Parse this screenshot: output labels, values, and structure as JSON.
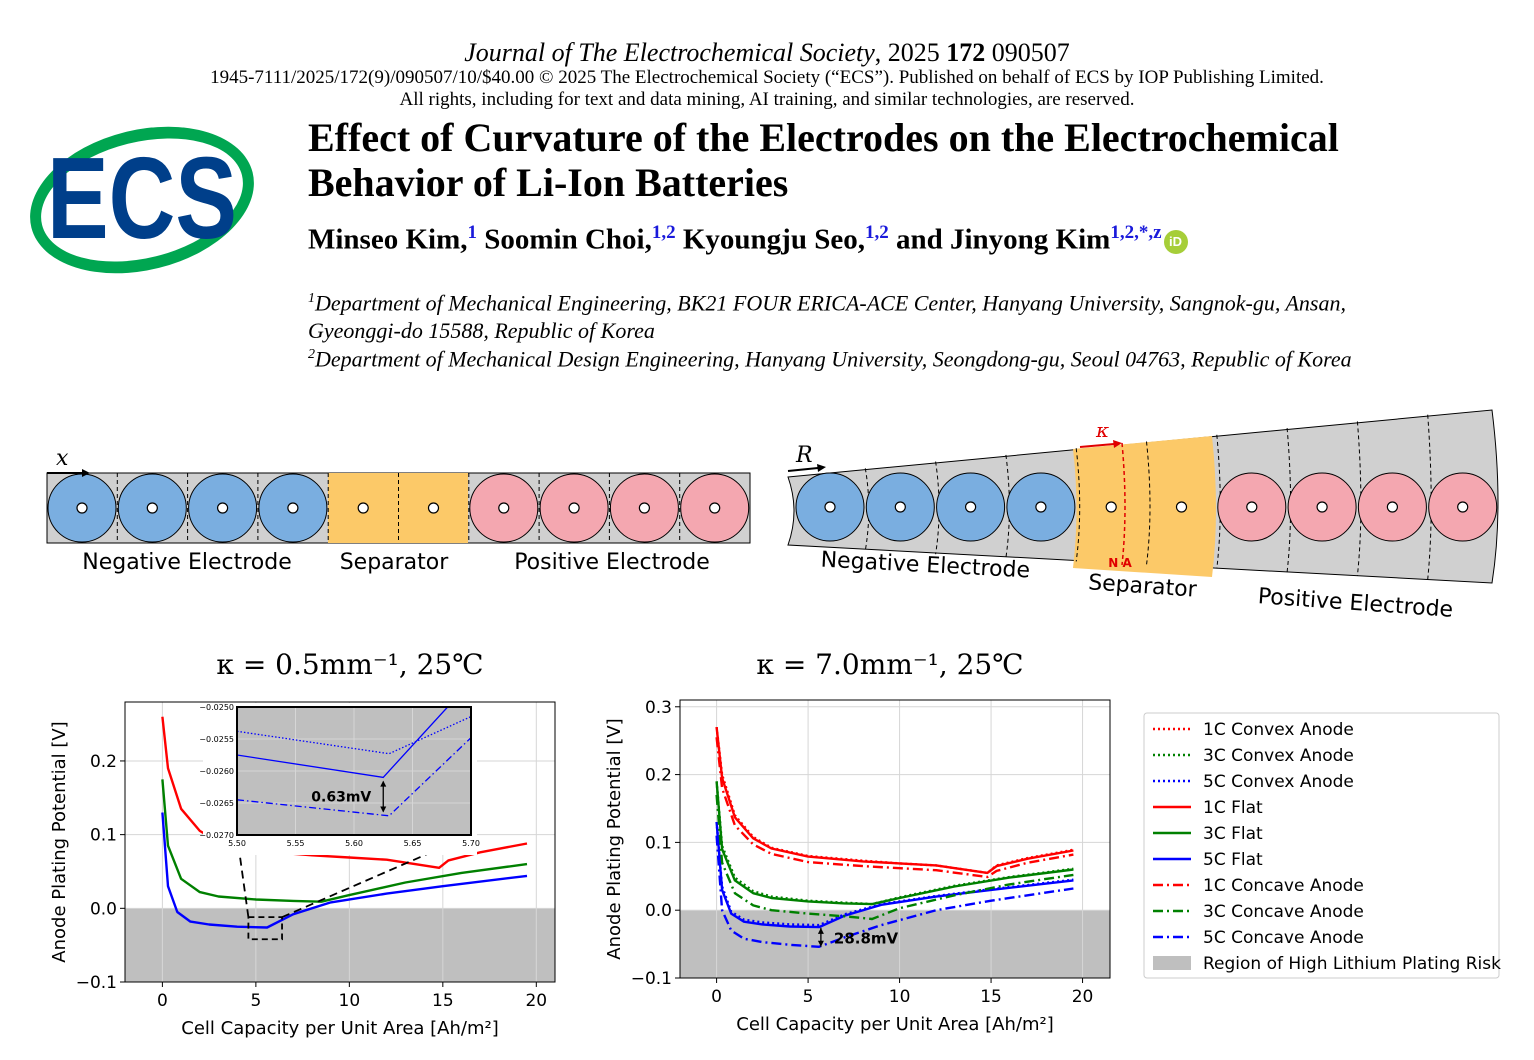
{
  "header": {
    "journal_name": "Journal of The Electrochemical Society",
    "year": "2025",
    "volume": "172",
    "article_number": "090507",
    "copyright_line": "1945-7111/2025/172(9)/090507/10/$40.00 © 2025 The Electrochemical Society (“ECS”). Published on behalf of ECS by IOP Publishing Limited.",
    "rights_line": "All rights, including for text and data mining, AI training, and similar technologies, are reserved."
  },
  "logo": {
    "text": "ECS"
  },
  "paper": {
    "title_line1": "Effect of Curvature of the Electrodes on the Electrochemical",
    "title_line2": "Behavior of Li-Ion Batteries",
    "authors": [
      {
        "name": "Minseo Kim,",
        "sup": "1"
      },
      {
        "name": "Soomin Choi,",
        "sup": "1,2"
      },
      {
        "name": "Kyoungju Seo,",
        "sup": "1,2"
      },
      {
        "name": "and Jinyong Kim",
        "sup": "1,2,*,z"
      }
    ],
    "orcid_label": "iD",
    "affiliations": [
      {
        "sup": "1",
        "line1": "Department of Mechanical Engineering, BK21 FOUR ERICA-ACE Center, Hanyang University, Sangnok-gu, Ansan,",
        "line2": "Gyeonggi-do 15588, Republic of Korea"
      },
      {
        "sup": "2",
        "line1": "Department of Mechanical Design Engineering, Hanyang University, Seongdong-gu, Seoul 04763, Republic of Korea",
        "line2": ""
      }
    ]
  },
  "schematic_flat": {
    "axis_label": "x",
    "negative_label": "Negative Electrode",
    "separator_label": "Separator",
    "positive_label": "Positive Electrode",
    "colors": {
      "negative": "#7aaee0",
      "separator": "#fcc968",
      "positive": "#f4a7b0",
      "background": "#d0d0d0"
    }
  },
  "schematic_curved": {
    "axis_label": "R",
    "kappa_label": "κ",
    "na_label": "N A",
    "negative_label": "Negative Electrode",
    "separator_label": "Separator",
    "positive_label": "Positive Electrode"
  },
  "plot_titles": {
    "left": "κ = 0.5mm⁻¹, 25℃",
    "right": "κ = 7.0mm⁻¹, 25℃"
  },
  "chart_data": [
    {
      "type": "line",
      "title": "κ = 0.5mm⁻¹, 25℃",
      "xlabel": "Cell Capacity per Unit Area [Ah/m²]",
      "ylabel": "Anode Plating Potential [V]",
      "xlim": [
        -2,
        21
      ],
      "ylim": [
        -0.1,
        0.28
      ],
      "xticks": [
        "0",
        "5",
        "10",
        "15",
        "20"
      ],
      "yticks": [
        "−0.1",
        "0.0",
        "0.1",
        "0.2"
      ],
      "grid": true,
      "risk_region": [
        -0.1,
        0.0
      ],
      "series": [
        {
          "name": "1C Flat",
          "color": "#ff0000",
          "style": "solid",
          "x": [
            0,
            0.3,
            1,
            2,
            3,
            5,
            8,
            10,
            12,
            14.8,
            15.3,
            17,
            19.5
          ],
          "y": [
            0.26,
            0.19,
            0.135,
            0.105,
            0.09,
            0.078,
            0.072,
            0.069,
            0.066,
            0.055,
            0.065,
            0.076,
            0.088
          ]
        },
        {
          "name": "3C Flat",
          "color": "#008000",
          "style": "solid",
          "x": [
            0,
            0.3,
            1,
            2,
            3,
            5,
            7,
            8.5,
            10,
            13,
            16,
            19.5
          ],
          "y": [
            0.175,
            0.085,
            0.04,
            0.022,
            0.016,
            0.012,
            0.01,
            0.009,
            0.018,
            0.035,
            0.048,
            0.06
          ]
        },
        {
          "name": "5C Flat",
          "color": "#0000ff",
          "style": "solid",
          "x": [
            0,
            0.3,
            0.8,
            1.5,
            2.5,
            4,
            5.6,
            7,
            9,
            12,
            15,
            19.5
          ],
          "y": [
            0.13,
            0.03,
            -0.005,
            -0.018,
            -0.022,
            -0.025,
            -0.026,
            -0.008,
            0.008,
            0.02,
            0.03,
            0.044
          ]
        }
      ],
      "inset": {
        "xlim": [
          5.5,
          5.7
        ],
        "ylim": [
          -0.027,
          -0.025
        ],
        "xticks": [
          "5.50",
          "5.55",
          "5.60",
          "5.65",
          "5.70"
        ],
        "yticks": [
          "−0.0250",
          "−0.0255",
          "−0.0260",
          "−0.0265",
          "−0.0270"
        ],
        "annotation": "0.63mV",
        "series": [
          {
            "name": "5C Convex Anode",
            "style": "dotted",
            "x": [
              5.5,
              5.63,
              5.7
            ],
            "y": [
              -0.02538,
              -0.02573,
              -0.02515
            ]
          },
          {
            "name": "5C Flat",
            "style": "solid",
            "x": [
              5.5,
              5.625,
              5.68
            ],
            "y": [
              -0.02575,
              -0.0261,
              -0.025
            ]
          },
          {
            "name": "5C Concave Anode",
            "style": "dashdot",
            "x": [
              5.5,
              5.63,
              5.7
            ],
            "y": [
              -0.02645,
              -0.0267,
              -0.02548
            ]
          }
        ]
      }
    },
    {
      "type": "line",
      "title": "κ = 7.0mm⁻¹, 25℃",
      "xlabel": "Cell Capacity per Unit Area [Ah/m²]",
      "ylabel": "Anode Plating Potential [V]",
      "xlim": [
        -2,
        21.5
      ],
      "ylim": [
        -0.1,
        0.31
      ],
      "xticks": [
        "0",
        "5",
        "10",
        "15",
        "20"
      ],
      "yticks": [
        "−0.1",
        "0.0",
        "0.1",
        "0.2",
        "0.3"
      ],
      "grid": true,
      "risk_region": [
        -0.1,
        0.0
      ],
      "annotation": "28.8mV",
      "series": [
        {
          "name": "1C Convex Anode",
          "color": "#ff0000",
          "style": "dotted",
          "x": [
            0,
            0.3,
            1,
            2,
            3,
            5,
            8,
            10,
            12,
            14.8,
            15.3,
            17,
            19.5
          ],
          "y": [
            0.27,
            0.2,
            0.14,
            0.108,
            0.092,
            0.08,
            0.073,
            0.069,
            0.066,
            0.055,
            0.066,
            0.077,
            0.089
          ]
        },
        {
          "name": "3C Convex Anode",
          "color": "#008000",
          "style": "dotted",
          "x": [
            0,
            0.3,
            1,
            2,
            3,
            5,
            7,
            8.5,
            10,
            13,
            16,
            19.5
          ],
          "y": [
            0.19,
            0.095,
            0.048,
            0.028,
            0.02,
            0.014,
            0.011,
            0.009,
            0.019,
            0.036,
            0.049,
            0.061
          ]
        },
        {
          "name": "5C Convex Anode",
          "color": "#0000ff",
          "style": "dotted",
          "x": [
            0,
            0.3,
            0.8,
            1.5,
            2.5,
            4,
            5.6,
            7,
            9,
            12,
            15,
            19.5
          ],
          "y": [
            0.13,
            0.035,
            -0.002,
            -0.014,
            -0.018,
            -0.021,
            -0.022,
            -0.006,
            0.009,
            0.021,
            0.031,
            0.045
          ]
        },
        {
          "name": "1C Flat",
          "color": "#ff0000",
          "style": "solid",
          "x": [
            0,
            0.3,
            1,
            2,
            3,
            5,
            8,
            10,
            12,
            14.8,
            15.3,
            17,
            19.5
          ],
          "y": [
            0.27,
            0.195,
            0.137,
            0.106,
            0.091,
            0.079,
            0.072,
            0.069,
            0.066,
            0.055,
            0.065,
            0.076,
            0.088
          ]
        },
        {
          "name": "3C Flat",
          "color": "#008000",
          "style": "solid",
          "x": [
            0,
            0.3,
            1,
            2,
            3,
            5,
            7,
            8.5,
            10,
            13,
            16,
            19.5
          ],
          "y": [
            0.19,
            0.09,
            0.044,
            0.025,
            0.018,
            0.013,
            0.01,
            0.009,
            0.018,
            0.035,
            0.048,
            0.06
          ]
        },
        {
          "name": "5C Flat",
          "color": "#0000ff",
          "style": "solid",
          "x": [
            0,
            0.3,
            0.8,
            1.5,
            2.5,
            4,
            5.6,
            7,
            9,
            12,
            15,
            19.5
          ],
          "y": [
            0.13,
            0.03,
            -0.005,
            -0.017,
            -0.021,
            -0.024,
            -0.025,
            -0.008,
            0.008,
            0.02,
            0.03,
            0.044
          ]
        },
        {
          "name": "1C Concave Anode",
          "color": "#ff0000",
          "style": "dashdot",
          "x": [
            0,
            0.3,
            1,
            2,
            3,
            5,
            8,
            10,
            12,
            14.8,
            15.3,
            17,
            19.5
          ],
          "y": [
            0.255,
            0.18,
            0.125,
            0.097,
            0.083,
            0.071,
            0.065,
            0.062,
            0.059,
            0.049,
            0.058,
            0.07,
            0.082
          ]
        },
        {
          "name": "3C Concave Anode",
          "color": "#008000",
          "style": "dashdot",
          "x": [
            0,
            0.3,
            1,
            2,
            3,
            5,
            7,
            8.5,
            10,
            13,
            16,
            19.5
          ],
          "y": [
            0.17,
            0.07,
            0.025,
            0.007,
            0.0,
            -0.005,
            -0.009,
            -0.013,
            0.003,
            0.022,
            0.038,
            0.052
          ]
        },
        {
          "name": "5C Concave Anode",
          "color": "#0000ff",
          "style": "dashdot",
          "x": [
            0,
            0.3,
            0.8,
            1.5,
            2.5,
            4,
            5.6,
            7,
            9,
            12,
            15,
            19.5
          ],
          "y": [
            0.11,
            0.0,
            -0.03,
            -0.042,
            -0.047,
            -0.051,
            -0.054,
            -0.04,
            -0.022,
            0.0,
            0.014,
            0.032
          ]
        }
      ]
    }
  ],
  "legend": {
    "items": [
      {
        "label": "1C Convex Anode",
        "color": "#ff0000",
        "style": "dotted"
      },
      {
        "label": "3C Convex Anode",
        "color": "#008000",
        "style": "dotted"
      },
      {
        "label": "5C Convex Anode",
        "color": "#0000ff",
        "style": "dotted"
      },
      {
        "label": "1C Flat",
        "color": "#ff0000",
        "style": "solid"
      },
      {
        "label": "3C Flat",
        "color": "#008000",
        "style": "solid"
      },
      {
        "label": "5C Flat",
        "color": "#0000ff",
        "style": "solid"
      },
      {
        "label": "1C Concave Anode",
        "color": "#ff0000",
        "style": "dashdot"
      },
      {
        "label": "3C Concave Anode",
        "color": "#008000",
        "style": "dashdot"
      },
      {
        "label": "5C Concave Anode",
        "color": "#0000ff",
        "style": "dashdot"
      },
      {
        "label": "Region of High Lithium Plating Risk",
        "color": "#bfbfbf",
        "style": "patch"
      }
    ]
  }
}
